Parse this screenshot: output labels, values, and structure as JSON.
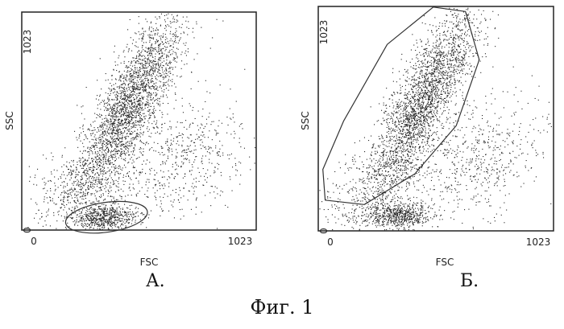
{
  "figure_caption": "Фиг. 1",
  "chart_data": [
    {
      "type": "scatter",
      "panel_label": "А.",
      "xlabel": "FSC",
      "ylabel": "SSC",
      "xlim": [
        0,
        1023
      ],
      "ylim": [
        0,
        1023
      ],
      "x_ticks": [
        "0",
        "1023"
      ],
      "y_ticks": [
        "0",
        "1023"
      ],
      "grid": false,
      "point_color": "#222222",
      "populations": [
        {
          "center": [
            470,
            590
          ],
          "spread": [
            120,
            220
          ],
          "correlation": 0.82,
          "count": 2600
        },
        {
          "center": [
            360,
            60
          ],
          "spread": [
            70,
            28
          ],
          "correlation": 0.1,
          "count": 600
        },
        {
          "center": [
            700,
            330
          ],
          "spread": [
            140,
            140
          ],
          "correlation": 0.3,
          "count": 550
        },
        {
          "center": [
            260,
            200
          ],
          "spread": [
            120,
            110
          ],
          "correlation": 0.4,
          "count": 500
        }
      ],
      "gate": {
        "shape": "ellipse",
        "center": [
          370,
          60
        ],
        "radii": [
          180,
          70
        ],
        "rotation_deg": 8
      }
    },
    {
      "type": "scatter",
      "panel_label": "Б.",
      "xlabel": "FSC",
      "ylabel": "SSC",
      "xlim": [
        0,
        1023
      ],
      "ylim": [
        0,
        1023
      ],
      "x_ticks": [
        "0",
        "1023"
      ],
      "y_ticks": [
        "0",
        "1023"
      ],
      "grid": false,
      "point_color": "#222222",
      "populations": [
        {
          "center": [
            460,
            600
          ],
          "spread": [
            120,
            220
          ],
          "correlation": 0.82,
          "count": 2600
        },
        {
          "center": [
            350,
            70
          ],
          "spread": [
            70,
            28
          ],
          "correlation": 0.1,
          "count": 600
        },
        {
          "center": [
            700,
            330
          ],
          "spread": [
            140,
            140
          ],
          "correlation": 0.3,
          "count": 550
        },
        {
          "center": [
            260,
            200
          ],
          "spread": [
            120,
            110
          ],
          "correlation": 0.4,
          "count": 500
        }
      ],
      "gate": {
        "shape": "polygon",
        "points": [
          [
            30,
            140
          ],
          [
            200,
            120
          ],
          [
            420,
            260
          ],
          [
            600,
            480
          ],
          [
            700,
            780
          ],
          [
            640,
            1000
          ],
          [
            500,
            1020
          ],
          [
            300,
            850
          ],
          [
            110,
            500
          ],
          [
            20,
            280
          ]
        ]
      }
    }
  ]
}
